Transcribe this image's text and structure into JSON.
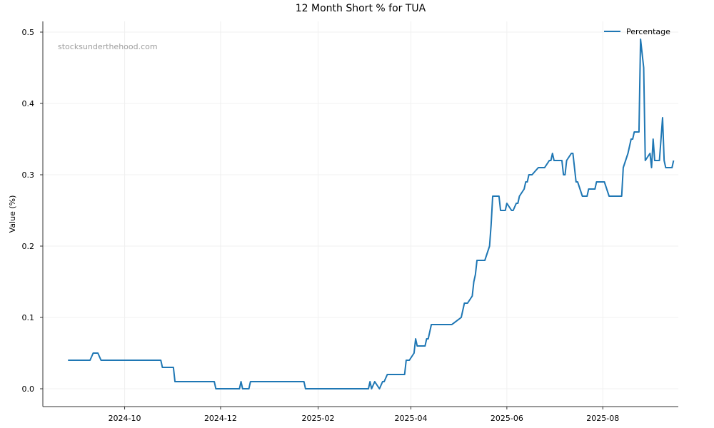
{
  "chart_data": {
    "type": "line",
    "title": "12 Month Short % for TUA",
    "xlabel": "",
    "ylabel": "Value (%)",
    "watermark": "stocksunderthehood.com",
    "legend_position": "top-right",
    "grid": true,
    "xlim": [
      "2024-08-10",
      "2025-09-18"
    ],
    "ylim": [
      -0.025,
      0.515
    ],
    "x_ticks": [
      "2024-10",
      "2024-12",
      "2025-02",
      "2025-04",
      "2025-06",
      "2025-08"
    ],
    "x_tick_dates": [
      "2024-10-01",
      "2024-12-01",
      "2025-02-01",
      "2025-04-01",
      "2025-06-01",
      "2025-08-01"
    ],
    "y_ticks": [
      "0.0",
      "0.1",
      "0.2",
      "0.3",
      "0.4",
      "0.5"
    ],
    "y_tick_values": [
      0.0,
      0.1,
      0.2,
      0.3,
      0.4,
      0.5
    ],
    "colors": {
      "line": "#1f77b4"
    },
    "series": [
      {
        "name": "Percentage",
        "points": [
          [
            "2024-08-26",
            0.04
          ],
          [
            "2024-09-01",
            0.04
          ],
          [
            "2024-09-09",
            0.04
          ],
          [
            "2024-09-11",
            0.05
          ],
          [
            "2024-09-14",
            0.05
          ],
          [
            "2024-09-16",
            0.04
          ],
          [
            "2024-09-25",
            0.04
          ],
          [
            "2024-10-05",
            0.04
          ],
          [
            "2024-10-15",
            0.04
          ],
          [
            "2024-10-24",
            0.04
          ],
          [
            "2024-10-25",
            0.03
          ],
          [
            "2024-11-01",
            0.03
          ],
          [
            "2024-11-02",
            0.01
          ],
          [
            "2024-11-15",
            0.01
          ],
          [
            "2024-11-27",
            0.01
          ],
          [
            "2024-11-28",
            0.0
          ],
          [
            "2024-12-08",
            0.0
          ],
          [
            "2024-12-13",
            0.0
          ],
          [
            "2024-12-14",
            0.01
          ],
          [
            "2024-12-15",
            0.0
          ],
          [
            "2024-12-19",
            0.0
          ],
          [
            "2024-12-20",
            0.01
          ],
          [
            "2025-01-01",
            0.01
          ],
          [
            "2025-01-13",
            0.01
          ],
          [
            "2025-01-23",
            0.01
          ],
          [
            "2025-01-24",
            0.0
          ],
          [
            "2025-02-10",
            0.0
          ],
          [
            "2025-03-02",
            0.0
          ],
          [
            "2025-03-05",
            0.0
          ],
          [
            "2025-03-06",
            0.01
          ],
          [
            "2025-03-07",
            0.0
          ],
          [
            "2025-03-09",
            0.01
          ],
          [
            "2025-03-12",
            0.0
          ],
          [
            "2025-03-14",
            0.01
          ],
          [
            "2025-03-15",
            0.01
          ],
          [
            "2025-03-17",
            0.02
          ],
          [
            "2025-03-22",
            0.02
          ],
          [
            "2025-03-28",
            0.02
          ],
          [
            "2025-03-29",
            0.04
          ],
          [
            "2025-03-31",
            0.04
          ],
          [
            "2025-04-03",
            0.05
          ],
          [
            "2025-04-04",
            0.07
          ],
          [
            "2025-04-05",
            0.06
          ],
          [
            "2025-04-10",
            0.06
          ],
          [
            "2025-04-11",
            0.07
          ],
          [
            "2025-04-12",
            0.07
          ],
          [
            "2025-04-14",
            0.09
          ],
          [
            "2025-04-20",
            0.09
          ],
          [
            "2025-04-27",
            0.09
          ],
          [
            "2025-05-03",
            0.1
          ],
          [
            "2025-05-05",
            0.12
          ],
          [
            "2025-05-07",
            0.12
          ],
          [
            "2025-05-10",
            0.13
          ],
          [
            "2025-05-11",
            0.15
          ],
          [
            "2025-05-12",
            0.16
          ],
          [
            "2025-05-13",
            0.18
          ],
          [
            "2025-05-18",
            0.18
          ],
          [
            "2025-05-21",
            0.2
          ],
          [
            "2025-05-22",
            0.23
          ],
          [
            "2025-05-23",
            0.27
          ],
          [
            "2025-05-27",
            0.27
          ],
          [
            "2025-05-28",
            0.25
          ],
          [
            "2025-05-31",
            0.25
          ],
          [
            "2025-06-01",
            0.26
          ],
          [
            "2025-06-04",
            0.25
          ],
          [
            "2025-06-05",
            0.25
          ],
          [
            "2025-06-07",
            0.26
          ],
          [
            "2025-06-08",
            0.26
          ],
          [
            "2025-06-09",
            0.27
          ],
          [
            "2025-06-12",
            0.28
          ],
          [
            "2025-06-13",
            0.29
          ],
          [
            "2025-06-14",
            0.29
          ],
          [
            "2025-06-15",
            0.3
          ],
          [
            "2025-06-17",
            0.3
          ],
          [
            "2025-06-21",
            0.31
          ],
          [
            "2025-06-25",
            0.31
          ],
          [
            "2025-06-28",
            0.32
          ],
          [
            "2025-06-29",
            0.32
          ],
          [
            "2025-06-30",
            0.33
          ],
          [
            "2025-07-01",
            0.32
          ],
          [
            "2025-07-06",
            0.32
          ],
          [
            "2025-07-07",
            0.3
          ],
          [
            "2025-07-08",
            0.3
          ],
          [
            "2025-07-09",
            0.32
          ],
          [
            "2025-07-12",
            0.33
          ],
          [
            "2025-07-13",
            0.33
          ],
          [
            "2025-07-15",
            0.29
          ],
          [
            "2025-07-16",
            0.29
          ],
          [
            "2025-07-19",
            0.27
          ],
          [
            "2025-07-22",
            0.27
          ],
          [
            "2025-07-23",
            0.28
          ],
          [
            "2025-07-27",
            0.28
          ],
          [
            "2025-07-28",
            0.29
          ],
          [
            "2025-08-02",
            0.29
          ],
          [
            "2025-08-05",
            0.27
          ],
          [
            "2025-08-13",
            0.27
          ],
          [
            "2025-08-14",
            0.31
          ],
          [
            "2025-08-17",
            0.33
          ],
          [
            "2025-08-19",
            0.35
          ],
          [
            "2025-08-20",
            0.35
          ],
          [
            "2025-08-21",
            0.36
          ],
          [
            "2025-08-24",
            0.36
          ],
          [
            "2025-08-25",
            0.49
          ],
          [
            "2025-08-27",
            0.45
          ],
          [
            "2025-08-28",
            0.32
          ],
          [
            "2025-08-31",
            0.33
          ],
          [
            "2025-09-01",
            0.31
          ],
          [
            "2025-09-02",
            0.35
          ],
          [
            "2025-09-03",
            0.32
          ],
          [
            "2025-09-06",
            0.32
          ],
          [
            "2025-09-08",
            0.38
          ],
          [
            "2025-09-09",
            0.32
          ],
          [
            "2025-09-10",
            0.31
          ],
          [
            "2025-09-14",
            0.31
          ],
          [
            "2025-09-15",
            0.32
          ]
        ]
      }
    ]
  }
}
